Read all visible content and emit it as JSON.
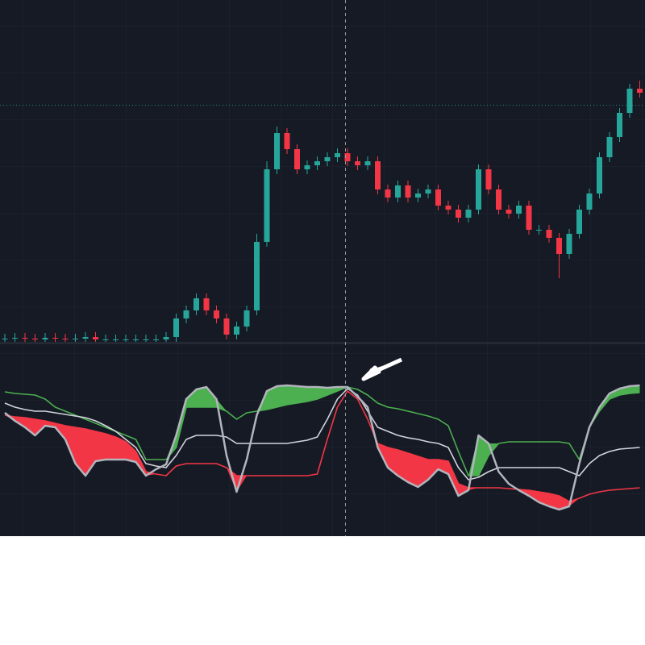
{
  "chart_data": [
    {
      "type": "candlestick",
      "up_color": "#26a69a",
      "down_color": "#f23645",
      "ylim": [
        0,
        425
      ],
      "open": [
        4,
        5,
        6,
        5,
        4,
        6,
        5,
        4,
        5,
        7,
        4,
        4,
        4,
        4,
        4,
        4,
        4,
        7,
        30,
        40,
        55,
        40,
        30,
        10,
        20,
        40,
        125,
        215,
        260,
        240,
        215,
        220,
        225,
        230,
        235,
        225,
        220,
        225,
        190,
        180,
        195,
        180,
        185,
        190,
        170,
        165,
        155,
        165,
        215,
        190,
        165,
        160,
        170,
        140,
        140,
        130,
        110,
        135,
        165,
        185,
        230,
        255,
        285,
        315
      ],
      "high": [
        11,
        12,
        12,
        11,
        12,
        12,
        11,
        11,
        13,
        13,
        10,
        10,
        10,
        10,
        10,
        10,
        13,
        36,
        46,
        61,
        61,
        46,
        36,
        26,
        46,
        135,
        225,
        268,
        266,
        246,
        226,
        231,
        236,
        241,
        241,
        231,
        231,
        231,
        196,
        201,
        201,
        191,
        196,
        196,
        176,
        171,
        171,
        221,
        221,
        196,
        171,
        176,
        176,
        146,
        146,
        136,
        141,
        171,
        191,
        236,
        261,
        291,
        321,
        325
      ],
      "low": [
        -2,
        -1,
        -1,
        -2,
        -2,
        -1,
        -2,
        -2,
        -1,
        -2,
        -2,
        -2,
        -2,
        -2,
        -2,
        -2,
        -2,
        1,
        24,
        34,
        34,
        24,
        4,
        4,
        14,
        34,
        119,
        209,
        234,
        209,
        209,
        214,
        219,
        224,
        219,
        214,
        214,
        184,
        174,
        174,
        174,
        174,
        179,
        164,
        159,
        149,
        149,
        159,
        184,
        159,
        154,
        154,
        134,
        134,
        124,
        80,
        104,
        129,
        159,
        179,
        224,
        249,
        279,
        304
      ],
      "close": [
        5,
        6,
        5,
        4,
        6,
        5,
        4,
        5,
        7,
        4,
        4,
        4,
        4,
        4,
        4,
        4,
        7,
        30,
        40,
        55,
        40,
        30,
        10,
        20,
        40,
        125,
        215,
        260,
        240,
        215,
        220,
        225,
        230,
        235,
        225,
        220,
        225,
        190,
        180,
        195,
        180,
        185,
        190,
        170,
        165,
        155,
        165,
        215,
        190,
        165,
        160,
        170,
        140,
        140,
        130,
        110,
        135,
        165,
        185,
        230,
        255,
        285,
        315,
        310
      ]
    },
    {
      "type": "line",
      "ylim": [
        0,
        235
      ],
      "fill_colors": {
        "above": "#4caf50",
        "below": "#f23645"
      },
      "series": [
        {
          "color": "#4caf50",
          "values": [
            179,
            177,
            176,
            175,
            170,
            160,
            155,
            150,
            145,
            140,
            135,
            130,
            125,
            120,
            95,
            95,
            95,
            110,
            160,
            160,
            160,
            160,
            155,
            145,
            153,
            155,
            157,
            160,
            163,
            165,
            167,
            170,
            175,
            180,
            185,
            182,
            175,
            165,
            160,
            158,
            155,
            152,
            149,
            145,
            137,
            105,
            75,
            75,
            100,
            115,
            117,
            117,
            117,
            117,
            117,
            117,
            115,
            95,
            135,
            155,
            170,
            175,
            177,
            178
          ]
        },
        {
          "color": "#f23645",
          "values": [
            150,
            148,
            147,
            145,
            143,
            140,
            137,
            135,
            133,
            130,
            127,
            123,
            117,
            105,
            80,
            77,
            75,
            87,
            90,
            90,
            90,
            90,
            85,
            75,
            75,
            75,
            75,
            75,
            75,
            75,
            75,
            77,
            120,
            160,
            180,
            170,
            145,
            115,
            110,
            107,
            103,
            99,
            95,
            95,
            93,
            65,
            60,
            60,
            60,
            60,
            59,
            58,
            57,
            55,
            53,
            50,
            43,
            47,
            52,
            55,
            57,
            58,
            59,
            60
          ]
        },
        {
          "color": "#d1d4dc",
          "values": [
            165,
            160,
            157,
            155,
            155,
            153,
            151,
            149,
            147,
            143,
            137,
            130,
            120,
            110,
            90,
            87,
            85,
            100,
            120,
            125,
            125,
            125,
            123,
            115,
            115,
            115,
            115,
            115,
            115,
            117,
            119,
            123,
            145,
            170,
            183,
            175,
            155,
            135,
            130,
            125,
            122,
            120,
            117,
            115,
            110,
            85,
            70,
            73,
            80,
            85,
            85,
            85,
            85,
            85,
            85,
            85,
            80,
            75,
            90,
            100,
            105,
            108,
            109,
            110
          ]
        },
        {
          "color": "#b2b5be",
          "values": [
            153,
            143,
            135,
            125,
            137,
            135,
            120,
            90,
            75,
            93,
            95,
            95,
            95,
            92,
            75,
            83,
            89,
            125,
            170,
            182,
            185,
            170,
            100,
            55,
            95,
            150,
            180,
            186,
            187,
            186,
            185,
            185,
            184,
            185,
            185,
            173,
            160,
            110,
            85,
            75,
            67,
            61,
            70,
            83,
            77,
            50,
            57,
            125,
            115,
            80,
            65,
            57,
            50,
            42,
            37,
            33,
            37,
            90,
            135,
            160,
            177,
            183,
            186,
            187
          ]
        }
      ]
    }
  ]
}
